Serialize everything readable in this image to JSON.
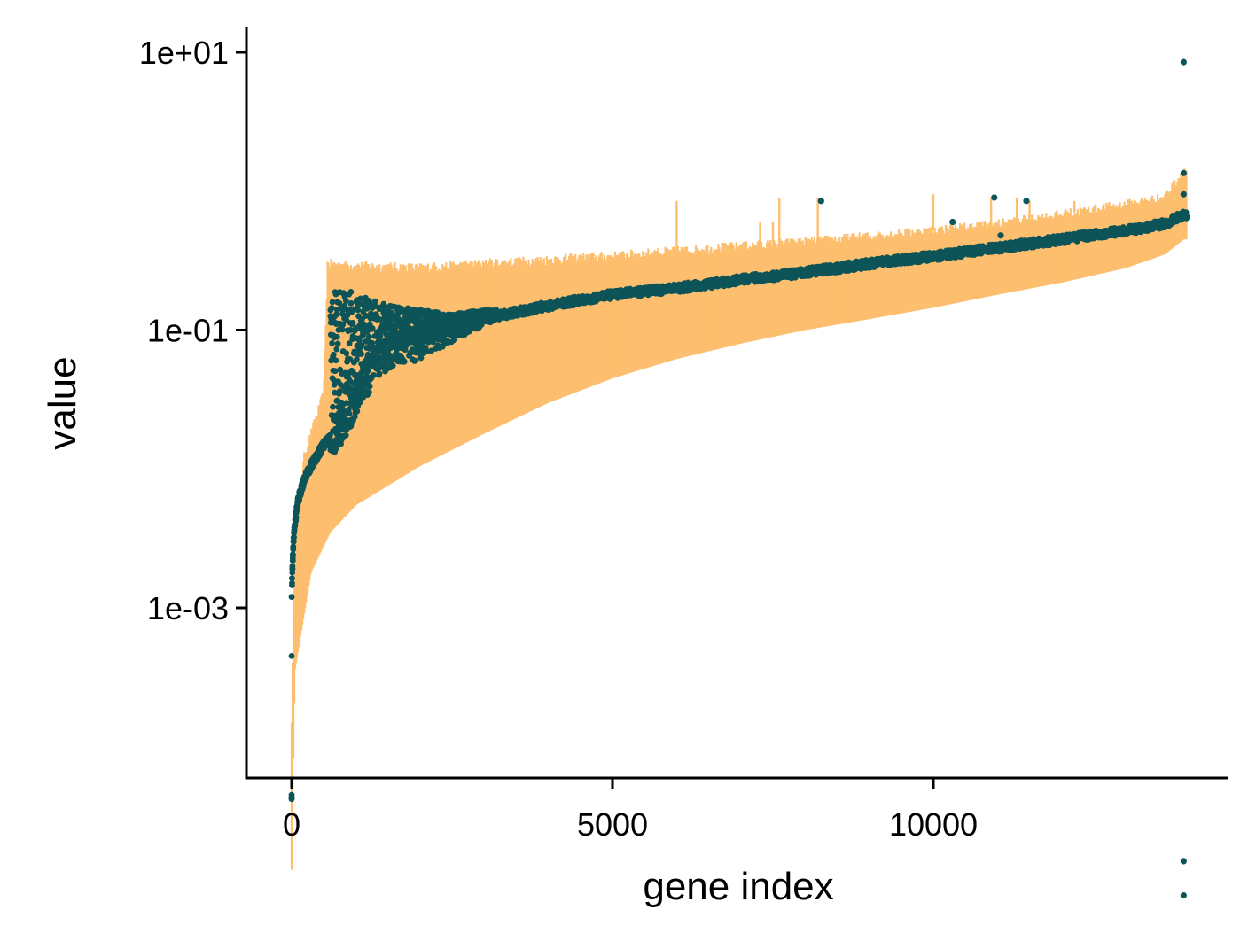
{
  "chart_data": {
    "type": "scatter",
    "title": "",
    "xlabel": "gene index",
    "ylabel": "value",
    "x_scale": "linear",
    "y_scale": "log10",
    "xlim": [
      -700,
      14600
    ],
    "ylim": [
      4e-06,
      15
    ],
    "x_ticks": [
      {
        "value": 0,
        "label": "0"
      },
      {
        "value": 5000,
        "label": "5000"
      },
      {
        "value": 10000,
        "label": "10000"
      }
    ],
    "y_ticks": [
      {
        "value": 0.001,
        "label": "1e-03"
      },
      {
        "value": 0.1,
        "label": "1e-01"
      },
      {
        "value": 10,
        "label": "1e+01"
      }
    ],
    "grid": false,
    "legend": "none",
    "colors": {
      "points": "#0d5459",
      "intervals": "#fdbf6f",
      "axis": "#000000"
    },
    "series": [
      {
        "kind": "interval",
        "band_lower": [
          [
            0,
            1.3e-05
          ],
          [
            50,
            0.00035
          ],
          [
            300,
            0.0018
          ],
          [
            600,
            0.0035
          ],
          [
            1000,
            0.0055
          ],
          [
            2000,
            0.0105
          ],
          [
            3000,
            0.018
          ],
          [
            4000,
            0.03
          ],
          [
            5000,
            0.045
          ],
          [
            6000,
            0.062
          ],
          [
            7000,
            0.08
          ],
          [
            8000,
            0.1
          ],
          [
            9000,
            0.12
          ],
          [
            10000,
            0.145
          ],
          [
            11000,
            0.18
          ],
          [
            12000,
            0.22
          ],
          [
            13000,
            0.28
          ],
          [
            13600,
            0.35
          ],
          [
            13900,
            0.45
          ]
        ],
        "band_upper": [
          [
            0,
            0.00016
          ],
          [
            50,
            0.0035
          ],
          [
            200,
            0.0125
          ],
          [
            400,
            0.025
          ],
          [
            500,
            0.035
          ],
          [
            560,
            0.3
          ],
          [
            1000,
            0.29
          ],
          [
            2000,
            0.28
          ],
          [
            3000,
            0.3
          ],
          [
            4000,
            0.32
          ],
          [
            5000,
            0.34
          ],
          [
            6000,
            0.37
          ],
          [
            7000,
            0.4
          ],
          [
            8000,
            0.43
          ],
          [
            9000,
            0.47
          ],
          [
            10000,
            0.52
          ],
          [
            11000,
            0.58
          ],
          [
            12000,
            0.68
          ],
          [
            13000,
            0.8
          ],
          [
            13600,
            0.9
          ],
          [
            13900,
            1.4
          ]
        ],
        "spikes": [
          [
            6000,
            0.85
          ],
          [
            7300,
            0.6
          ],
          [
            7500,
            0.6
          ],
          [
            7600,
            0.9
          ],
          [
            8200,
            0.9
          ],
          [
            10000,
            0.95
          ],
          [
            10900,
            0.9
          ],
          [
            11300,
            0.9
          ],
          [
            11500,
            0.85
          ],
          [
            12200,
            0.85
          ]
        ]
      },
      {
        "kind": "point",
        "values": [
          [
            0,
            4.5e-05
          ],
          [
            0,
            0.00045
          ],
          [
            0,
            0.0012
          ],
          [
            10,
            0.0018
          ],
          [
            20,
            0.0024
          ],
          [
            30,
            0.003
          ],
          [
            50,
            0.004
          ],
          [
            100,
            0.006
          ],
          [
            200,
            0.0085
          ],
          [
            300,
            0.0105
          ],
          [
            400,
            0.0125
          ],
          [
            500,
            0.015
          ],
          [
            700,
            0.018
          ],
          [
            900,
            0.025
          ],
          [
            1100,
            0.04
          ],
          [
            1300,
            0.055
          ],
          [
            1500,
            0.07
          ],
          [
            2000,
            0.08
          ],
          [
            2500,
            0.1
          ],
          [
            3000,
            0.12
          ],
          [
            4000,
            0.15
          ],
          [
            5000,
            0.18
          ],
          [
            6000,
            0.2
          ],
          [
            7000,
            0.23
          ],
          [
            8000,
            0.26
          ],
          [
            9000,
            0.3
          ],
          [
            10000,
            0.34
          ],
          [
            11000,
            0.39
          ],
          [
            12000,
            0.45
          ],
          [
            13000,
            0.52
          ],
          [
            13600,
            0.58
          ],
          [
            13900,
            0.68
          ]
        ],
        "upper_arm": [
          [
            650,
            0.2
          ],
          [
            900,
            0.19
          ],
          [
            1200,
            0.17
          ],
          [
            1500,
            0.15
          ],
          [
            2000,
            0.14
          ],
          [
            2500,
            0.13
          ],
          [
            3000,
            0.14
          ]
        ],
        "outliers": [
          [
            8250,
            0.85
          ],
          [
            10300,
            0.6
          ],
          [
            10950,
            0.9
          ],
          [
            11050,
            0.48
          ],
          [
            11450,
            0.85
          ],
          [
            13900,
            0.95
          ],
          [
            13900,
            1.35
          ],
          [
            13900,
            8.5
          ],
          [
            13900,
            1.5e-05
          ],
          [
            13900,
            8.5e-06
          ]
        ]
      }
    ]
  }
}
